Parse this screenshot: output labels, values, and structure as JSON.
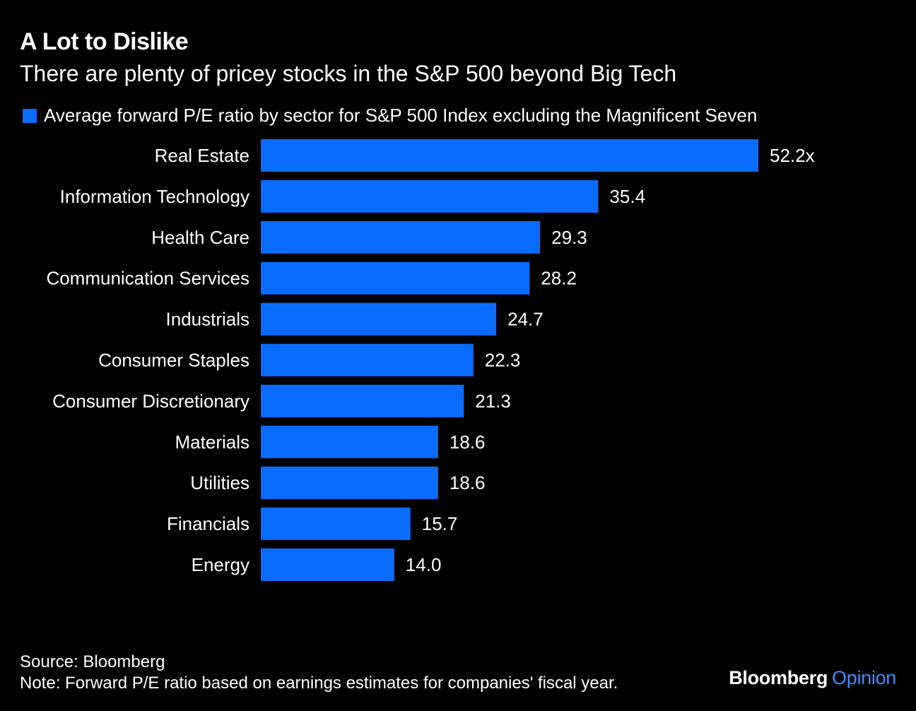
{
  "title": "A Lot to Dislike",
  "subtitle": "There are plenty of pricey stocks in the S&P 500 beyond Big Tech",
  "legend_label": "Average forward P/E ratio by sector for S&P 500 Index excluding the Magnificent Seven",
  "colors": {
    "bar": "#0a6cff",
    "background": "#000000",
    "text": "#ffffff",
    "brand_accent": "#3a8cff"
  },
  "chart_data": {
    "type": "bar",
    "orientation": "horizontal",
    "categories": [
      "Real Estate",
      "Information Technology",
      "Health Care",
      "Communication Services",
      "Industrials",
      "Consumer Staples",
      "Consumer Discretionary",
      "Materials",
      "Utilities",
      "Financials",
      "Energy"
    ],
    "series": [
      {
        "name": "Average forward P/E ratio by sector for S&P 500 Index excluding the Magnificent Seven",
        "values": [
          52.2,
          35.4,
          29.3,
          28.2,
          24.7,
          22.3,
          21.3,
          18.6,
          18.6,
          15.7,
          14.0
        ]
      }
    ],
    "value_labels": [
      "52.2x",
      "35.4",
      "29.3",
      "28.2",
      "24.7",
      "22.3",
      "21.3",
      "18.6",
      "18.6",
      "15.7",
      "14.0"
    ],
    "xlim": [
      0,
      52.2
    ],
    "grid": false,
    "legend_position": "top-left"
  },
  "footer": {
    "source": "Source: Bloomberg",
    "note": "Note: Forward P/E ratio based on earnings estimates for companies' fiscal year."
  },
  "brand": {
    "part1": "Bloomberg",
    "part2": "Opinion"
  }
}
